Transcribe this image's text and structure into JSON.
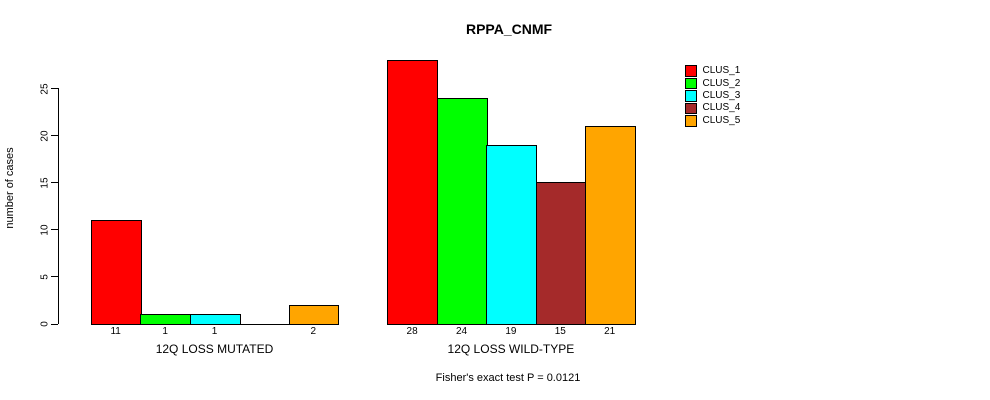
{
  "chart_data": {
    "type": "bar",
    "title": "RPPA_CNMF",
    "ylabel": "number of cases",
    "xlabel": "",
    "caption": "Fisher's exact test P = 0.0121",
    "y_ticks": [
      0,
      5,
      10,
      15,
      20,
      25
    ],
    "ylim": [
      0,
      25
    ],
    "grid": false,
    "legend_position": "top-right",
    "categories": [
      "12Q LOSS MUTATED",
      "12Q LOSS WILD-TYPE"
    ],
    "groups": [
      {
        "label": "12Q LOSS MUTATED",
        "values": [
          11,
          1,
          1,
          0,
          2
        ],
        "bar_labels": [
          "11",
          "1",
          "1",
          "",
          "2"
        ]
      },
      {
        "label": "12Q LOSS WILD-TYPE",
        "values": [
          28,
          24,
          19,
          15,
          21
        ],
        "bar_labels": [
          "28",
          "24",
          "19",
          "15",
          "21"
        ]
      }
    ],
    "series": [
      {
        "name": "CLUS_1",
        "color": "#FF0000"
      },
      {
        "name": "CLUS_2",
        "color": "#00FF00"
      },
      {
        "name": "CLUS_3",
        "color": "#00FFFF"
      },
      {
        "name": "CLUS_4",
        "color": "#A52A2A"
      },
      {
        "name": "CLUS_5",
        "color": "#FFA500"
      }
    ],
    "colors": {
      "background": "#FFFFFF",
      "bar_border": "#000000",
      "text": "#000000"
    }
  }
}
